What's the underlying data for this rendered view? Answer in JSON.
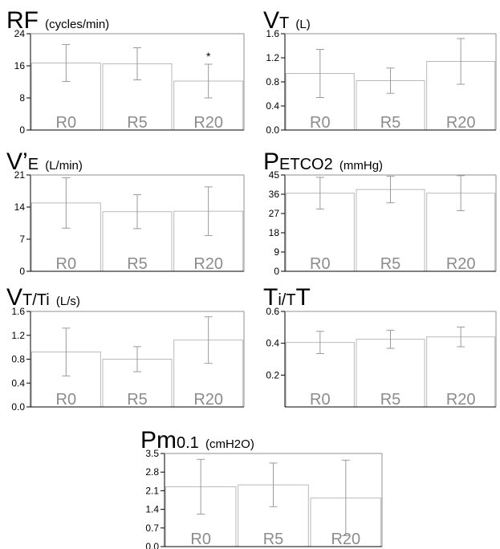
{
  "chart_data": [
    {
      "type": "bar",
      "title_main": "RF",
      "title_sub": "",
      "title_unit": "(cycles/min)",
      "categories": [
        "R0",
        "R5",
        "R20"
      ],
      "values": [
        16.7,
        16.5,
        12.2
      ],
      "error": [
        4.6,
        4.0,
        4.2
      ],
      "ylim": [
        0,
        24
      ],
      "yticks": [
        "0",
        "8",
        "16",
        "24"
      ],
      "annotations": [
        "",
        "",
        "*"
      ],
      "grid": false,
      "xlabel": "",
      "ylabel": ""
    },
    {
      "type": "bar",
      "title_main": "V",
      "title_sub": "T",
      "title_unit": "(L)",
      "categories": [
        "R0",
        "R5",
        "R20"
      ],
      "values": [
        0.94,
        0.82,
        1.14
      ],
      "error": [
        0.4,
        0.21,
        0.38
      ],
      "ylim": [
        0,
        1.6
      ],
      "yticks": [
        "0.0",
        "0.4",
        "0.8",
        "1.2",
        "1.6"
      ],
      "annotations": [
        "",
        "",
        ""
      ],
      "grid": false,
      "xlabel": "",
      "ylabel": ""
    },
    {
      "type": "bar",
      "title_main": "V’",
      "title_sub": "E",
      "title_unit": "(L/min)",
      "categories": [
        "R0",
        "R5",
        "R20"
      ],
      "values": [
        14.9,
        13.0,
        13.1
      ],
      "error": [
        5.5,
        3.7,
        5.3
      ],
      "ylim": [
        0,
        21
      ],
      "yticks": [
        "0",
        "7",
        "14",
        "21"
      ],
      "annotations": [
        "",
        "",
        ""
      ],
      "grid": false,
      "xlabel": "",
      "ylabel": ""
    },
    {
      "type": "bar",
      "title_main": "P",
      "title_sub": "ETCO2",
      "title_unit": "(mmHg)",
      "categories": [
        "R0",
        "R5",
        "R20"
      ],
      "values": [
        36.5,
        38.2,
        36.5
      ],
      "error": [
        7.4,
        6.2,
        8.2
      ],
      "ylim": [
        0,
        45
      ],
      "yticks": [
        "0",
        "9",
        "18",
        "27",
        "36",
        "45"
      ],
      "annotations": [
        "",
        "",
        ""
      ],
      "grid": false,
      "xlabel": "",
      "ylabel": ""
    },
    {
      "type": "bar",
      "title_main": "V",
      "title_sub": "T/Ti",
      "title_unit": "(L/s)",
      "categories": [
        "R0",
        "R5",
        "R20"
      ],
      "values": [
        0.92,
        0.8,
        1.12
      ],
      "error": [
        0.4,
        0.21,
        0.39
      ],
      "ylim": [
        0,
        1.6
      ],
      "yticks": [
        "0.0",
        "0.4",
        "0.8",
        "1.2",
        "1.6"
      ],
      "annotations": [
        "",
        "",
        ""
      ],
      "grid": false,
      "xlabel": "",
      "ylabel": ""
    },
    {
      "type": "bar",
      "title_main": "T",
      "title_sub": "i/T",
      "title_tail": "T",
      "title_unit": "",
      "categories": [
        "R0",
        "R5",
        "R20"
      ],
      "values": [
        0.405,
        0.425,
        0.44
      ],
      "error": [
        0.07,
        0.057,
        0.062
      ],
      "ylim": [
        0,
        0.6
      ],
      "yticks": [
        "0.2",
        "0.4",
        "0.6"
      ],
      "annotations": [
        "",
        "",
        ""
      ],
      "grid": false,
      "xlabel": "",
      "ylabel": ""
    },
    {
      "type": "bar",
      "title_main": "Pm",
      "title_sub": "0.1",
      "title_unit": "(cmH2O)",
      "categories": [
        "R0",
        "R5",
        "R20"
      ],
      "values": [
        2.25,
        2.32,
        1.83
      ],
      "error": [
        1.03,
        0.82,
        1.42
      ],
      "ylim": [
        0,
        3.5
      ],
      "yticks": [
        "0.0",
        "0.7",
        "1.4",
        "2.1",
        "2.8",
        "3.5"
      ],
      "annotations": [
        "",
        "",
        ""
      ],
      "grid": false,
      "xlabel": "",
      "ylabel": ""
    }
  ]
}
